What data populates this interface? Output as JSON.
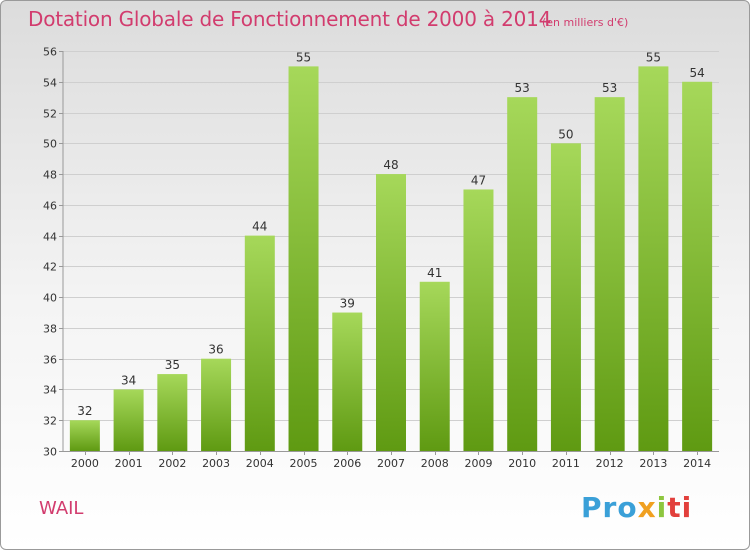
{
  "header": {
    "title": "Dotation Globale de Fonctionnement de 2000 à 2014",
    "subtitle": "(en milliers d'€)"
  },
  "footer": {
    "place": "WAIL",
    "logo": [
      "Pro",
      "x",
      "i",
      "ti"
    ]
  },
  "colors": {
    "accent": "#d23c6e",
    "bar_light": "#a6d85a",
    "bar_dark": "#5f9a12",
    "grid": "#cfcfcf",
    "axis_text": "#333333"
  },
  "chart_data": {
    "type": "bar",
    "title": "Dotation Globale de Fonctionnement de 2000 à 2014",
    "subtitle": "(en milliers d'€)",
    "xlabel": "",
    "ylabel": "",
    "categories": [
      "2000",
      "2001",
      "2002",
      "2003",
      "2004",
      "2005",
      "2006",
      "2007",
      "2008",
      "2009",
      "2010",
      "2011",
      "2012",
      "2013",
      "2014"
    ],
    "values": [
      32,
      34,
      35,
      36,
      44,
      55,
      39,
      48,
      41,
      47,
      53,
      50,
      53,
      55,
      54
    ],
    "ylim": [
      30,
      56
    ],
    "yticks": [
      30,
      32,
      34,
      36,
      38,
      40,
      42,
      44,
      46,
      48,
      50,
      52,
      54,
      56
    ],
    "grid": true,
    "data_labels": true
  }
}
